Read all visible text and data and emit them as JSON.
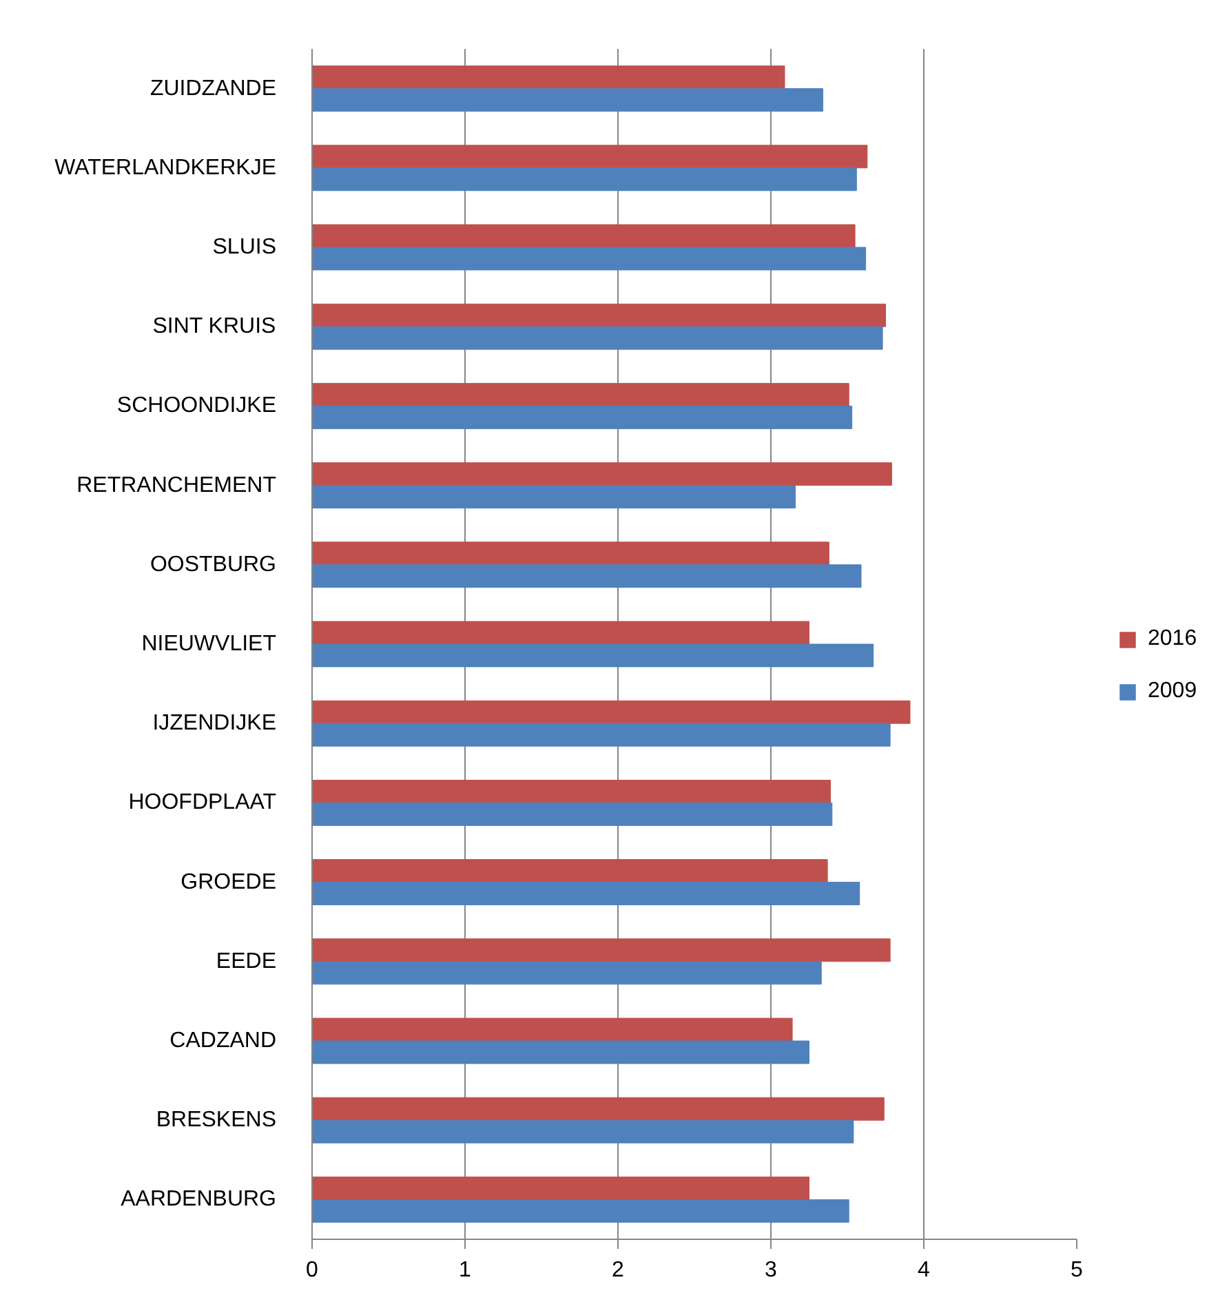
{
  "chart_data": {
    "type": "bar",
    "orientation": "horizontal",
    "categories": [
      "ZUIDZANDE",
      "WATERLANDKERKJE",
      "SLUIS",
      "SINT KRUIS",
      "SCHOONDIJKE",
      "RETRANCHEMENT",
      "OOSTBURG",
      "NIEUWVLIET",
      "IJZENDIJKE",
      "HOOFDPLAAT",
      "GROEDE",
      "EEDE",
      "CADZAND",
      "BRESKENS",
      "AARDENBURG"
    ],
    "series": [
      {
        "name": "2016",
        "color": "#c0504d",
        "values": [
          3.09,
          3.63,
          3.55,
          3.75,
          3.51,
          3.79,
          3.38,
          3.25,
          3.91,
          3.39,
          3.37,
          3.78,
          3.14,
          3.74,
          3.25
        ]
      },
      {
        "name": "2009",
        "color": "#4f81bd",
        "values": [
          3.34,
          3.56,
          3.62,
          3.73,
          3.53,
          3.16,
          3.59,
          3.67,
          3.78,
          3.4,
          3.58,
          3.33,
          3.25,
          3.54,
          3.51
        ]
      }
    ],
    "xlim": [
      0,
      5
    ],
    "xticks": [
      0,
      1,
      2,
      3,
      4,
      5
    ],
    "grid": "x",
    "legend": "right"
  }
}
